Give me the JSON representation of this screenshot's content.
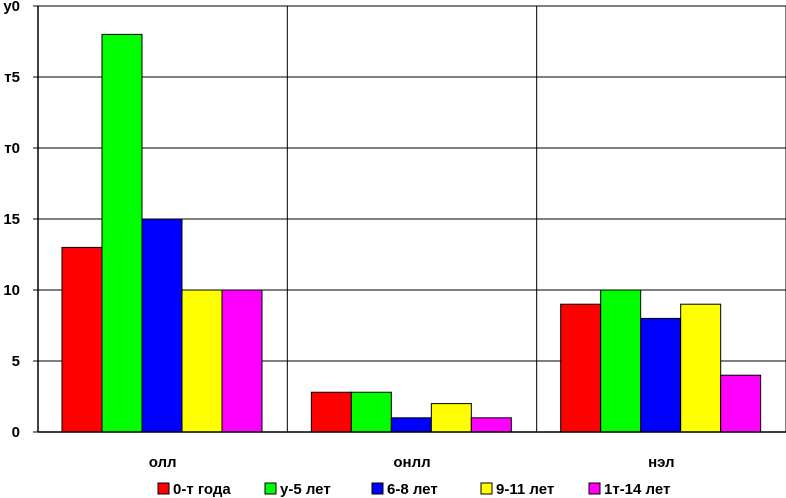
{
  "chart_data": {
    "type": "bar",
    "title": "",
    "xlabel": "",
    "ylabel": "",
    "categories": [
      "олл",
      "онлл",
      "нэл"
    ],
    "ytick_labels": [
      "0",
      "5",
      "10",
      "15",
      "т0",
      "т5",
      "у0"
    ],
    "ylim": [
      0,
      30
    ],
    "grid": true,
    "legend_position": "bottom",
    "series": [
      {
        "name": "0-т года",
        "color": "#ff0000",
        "values": [
          13,
          2.8,
          9
        ]
      },
      {
        "name": "у-5 лет",
        "color": "#00ff00",
        "values": [
          28,
          2.8,
          10
        ]
      },
      {
        "name": "6-8 лет",
        "color": "#0000ff",
        "values": [
          15,
          1,
          8
        ]
      },
      {
        "name": "9-11 лет",
        "color": "#ffff00",
        "values": [
          10,
          2,
          9
        ]
      },
      {
        "name": "1т-14 лет",
        "color": "#ff00ff",
        "values": [
          10,
          1,
          4
        ]
      }
    ]
  }
}
